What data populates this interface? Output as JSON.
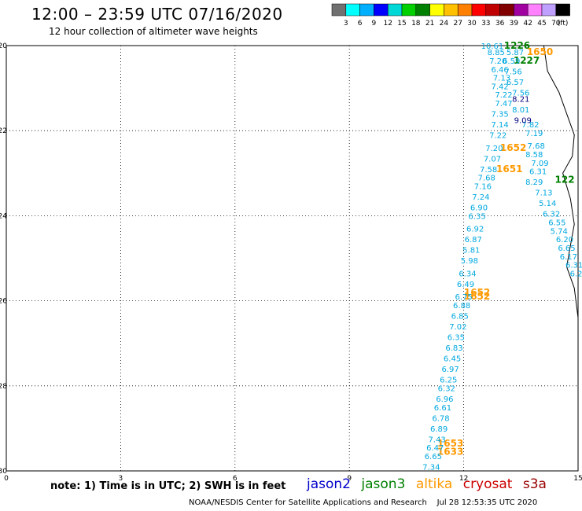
{
  "header": {
    "title": "12:00 – 23:59 UTC 07/16/2020",
    "subtitle": "12 hour collection of altimeter wave heights"
  },
  "colorbar": {
    "colors": [
      "#707070",
      "#00ffff",
      "#00b0ff",
      "#0000ff",
      "#00d8d8",
      "#00d000",
      "#008000",
      "#ffff00",
      "#ffc000",
      "#ff8000",
      "#ff0000",
      "#c00000",
      "#800000",
      "#a000a0",
      "#ff80ff",
      "#c0a0ff",
      "#000000"
    ],
    "labels": [
      "3",
      "6",
      "9",
      "12",
      "15",
      "18",
      "21",
      "24",
      "27",
      "30",
      "33",
      "36",
      "39",
      "42",
      "45",
      "70"
    ],
    "unit": "(ft)"
  },
  "footer": {
    "note": "note:  1) Time is in UTC;  2) SWH is in feet",
    "satellites": [
      {
        "name": "jason2",
        "color": "#0000cc"
      },
      {
        "name": "jason3",
        "color": "#008000"
      },
      {
        "name": "altika",
        "color": "#ff9900"
      },
      {
        "name": "cryosat",
        "color": "#cc0000"
      },
      {
        "name": "s3a",
        "color": "#990000"
      }
    ],
    "credit": "NOAA/NESDIS Center for Satellite Applications and Research    Jul 28 12:53:35 UTC 2020"
  },
  "chart_data": {
    "type": "scatter",
    "title": "12:00 – 23:59 UTC 07/16/2020",
    "xlim": [
      0,
      15
    ],
    "ylim": [
      -30,
      -20
    ],
    "x_ticks": [
      "0",
      "3",
      "6",
      "9",
      "12",
      "15"
    ],
    "y_ticks": [
      "-20",
      "-22",
      "-24",
      "-26",
      "-28",
      "-30"
    ],
    "grid": true,
    "coastline": [
      [
        14.1,
        -20.0
      ],
      [
        14.2,
        -20.6
      ],
      [
        14.5,
        -21.1
      ],
      [
        14.7,
        -21.6
      ],
      [
        14.9,
        -22.1
      ],
      [
        14.85,
        -22.6
      ],
      [
        14.6,
        -23.0
      ],
      [
        14.8,
        -23.6
      ],
      [
        14.9,
        -24.2
      ],
      [
        14.8,
        -24.7
      ],
      [
        14.7,
        -25.2
      ],
      [
        14.9,
        -25.7
      ],
      [
        15.0,
        -26.4
      ]
    ],
    "series": [
      {
        "name": "jason3",
        "color": "#008000",
        "points": [
          {
            "x": 13.4,
            "y": -20.0,
            "label": "1226"
          },
          {
            "x": 13.65,
            "y": -20.35,
            "label": "1227"
          },
          {
            "x": 14.65,
            "y": -23.15,
            "label": "122"
          }
        ]
      },
      {
        "name": "altika",
        "color": "#ff9900",
        "points": [
          {
            "x": 14.0,
            "y": -20.15,
            "label": "1650"
          },
          {
            "x": 13.3,
            "y": -22.4,
            "label": "1652"
          },
          {
            "x": 13.2,
            "y": -22.9,
            "label": "1651"
          },
          {
            "x": 12.35,
            "y": -25.8,
            "label": "1652"
          },
          {
            "x": 12.35,
            "y": -25.9,
            "label": "1652"
          },
          {
            "x": 11.65,
            "y": -29.35,
            "label": "1653"
          },
          {
            "x": 11.65,
            "y": -29.55,
            "label": "1633"
          }
        ]
      },
      {
        "name": "swh_track_a",
        "color": "#00a8e0",
        "points": [
          {
            "x": 12.75,
            "y": -20.0,
            "label": "10.61"
          },
          {
            "x": 12.85,
            "y": -20.15,
            "label": "8.85"
          },
          {
            "x": 12.9,
            "y": -20.35,
            "label": "7.20"
          },
          {
            "x": 12.95,
            "y": -20.55,
            "label": "6.46"
          },
          {
            "x": 13.0,
            "y": -20.75,
            "label": "7.13"
          },
          {
            "x": 12.95,
            "y": -20.95,
            "label": "7.42"
          },
          {
            "x": 13.05,
            "y": -21.15,
            "label": "7.22"
          },
          {
            "x": 13.05,
            "y": -21.35,
            "label": "7.47"
          },
          {
            "x": 12.95,
            "y": -21.6,
            "label": "7.35"
          },
          {
            "x": 12.95,
            "y": -21.85,
            "label": "7.14"
          },
          {
            "x": 12.9,
            "y": -22.1,
            "label": "7.22"
          },
          {
            "x": 12.8,
            "y": -22.4,
            "label": "7.20"
          },
          {
            "x": 12.75,
            "y": -22.65,
            "label": "7.07"
          },
          {
            "x": 12.65,
            "y": -22.9,
            "label": "7.58"
          },
          {
            "x": 12.6,
            "y": -23.1,
            "label": "7.68"
          },
          {
            "x": 12.5,
            "y": -23.3,
            "label": "7.16"
          },
          {
            "x": 12.45,
            "y": -23.55,
            "label": "7.24"
          },
          {
            "x": 12.4,
            "y": -23.8,
            "label": "6.90"
          },
          {
            "x": 12.35,
            "y": -24.0,
            "label": "6.35"
          },
          {
            "x": 12.3,
            "y": -24.3,
            "label": "6.92"
          },
          {
            "x": 12.25,
            "y": -24.55,
            "label": "6.87"
          },
          {
            "x": 12.2,
            "y": -24.8,
            "label": "5.81"
          },
          {
            "x": 12.15,
            "y": -25.05,
            "label": "5.98"
          },
          {
            "x": 12.1,
            "y": -25.35,
            "label": "6.34"
          },
          {
            "x": 12.05,
            "y": -25.6,
            "label": "6.49"
          },
          {
            "x": 12.0,
            "y": -25.9,
            "label": "6.75"
          },
          {
            "x": 11.95,
            "y": -26.1,
            "label": "6.88"
          },
          {
            "x": 11.9,
            "y": -26.35,
            "label": "6.85"
          },
          {
            "x": 11.85,
            "y": -26.6,
            "label": "7.02"
          },
          {
            "x": 11.8,
            "y": -26.85,
            "label": "6.35"
          },
          {
            "x": 11.75,
            "y": -27.1,
            "label": "6.83"
          },
          {
            "x": 11.7,
            "y": -27.35,
            "label": "6.45"
          },
          {
            "x": 11.65,
            "y": -27.6,
            "label": "6.97"
          },
          {
            "x": 11.6,
            "y": -27.85,
            "label": "6.25"
          },
          {
            "x": 11.55,
            "y": -28.05,
            "label": "6.32"
          },
          {
            "x": 11.5,
            "y": -28.3,
            "label": "6.96"
          },
          {
            "x": 11.45,
            "y": -28.5,
            "label": "6.61"
          },
          {
            "x": 11.4,
            "y": -28.75,
            "label": "6.78"
          },
          {
            "x": 11.35,
            "y": -29.0,
            "label": "6.89"
          },
          {
            "x": 11.3,
            "y": -29.25,
            "label": "7.43"
          },
          {
            "x": 11.25,
            "y": -29.45,
            "label": "6.47"
          },
          {
            "x": 11.2,
            "y": -29.65,
            "label": "6.65"
          },
          {
            "x": 11.15,
            "y": -29.9,
            "label": "7.34"
          }
        ]
      },
      {
        "name": "swh_track_b",
        "color": "#00a8e0",
        "points": [
          {
            "x": 13.35,
            "y": -20.15,
            "label": "5.87"
          },
          {
            "x": 13.25,
            "y": -20.35,
            "label": "6.59"
          },
          {
            "x": 13.3,
            "y": -20.6,
            "label": "7.56"
          },
          {
            "x": 13.35,
            "y": -20.85,
            "label": "6.57"
          },
          {
            "x": 13.5,
            "y": -21.1,
            "label": "7.56"
          },
          {
            "x": 13.5,
            "y": -21.5,
            "label": "8.01"
          },
          {
            "x": 13.75,
            "y": -21.85,
            "label": "7.82"
          },
          {
            "x": 13.85,
            "y": -22.05,
            "label": "7.19"
          },
          {
            "x": 13.9,
            "y": -22.35,
            "label": "7.68"
          },
          {
            "x": 13.85,
            "y": -22.55,
            "label": "8.58"
          },
          {
            "x": 14.0,
            "y": -22.75,
            "label": "7.09"
          },
          {
            "x": 13.95,
            "y": -22.95,
            "label": "6.31"
          },
          {
            "x": 13.85,
            "y": -23.2,
            "label": "8.29"
          },
          {
            "x": 14.1,
            "y": -23.45,
            "label": "7.13"
          },
          {
            "x": 14.2,
            "y": -23.7,
            "label": "5.14"
          },
          {
            "x": 14.3,
            "y": -23.95,
            "label": "6.32"
          },
          {
            "x": 14.45,
            "y": -24.15,
            "label": "6.55"
          },
          {
            "x": 14.5,
            "y": -24.35,
            "label": "5.74"
          },
          {
            "x": 14.65,
            "y": -24.55,
            "label": "6.20"
          },
          {
            "x": 14.7,
            "y": -24.75,
            "label": "6.65"
          },
          {
            "x": 14.75,
            "y": -24.95,
            "label": "6.17"
          },
          {
            "x": 14.9,
            "y": -25.15,
            "label": "6.31"
          },
          {
            "x": 14.95,
            "y": -25.35,
            "label": "6.2"
          }
        ]
      },
      {
        "name": "swh_dark",
        "color": "#000080",
        "points": [
          {
            "x": 13.5,
            "y": -21.25,
            "label": "8.21"
          },
          {
            "x": 13.55,
            "y": -21.75,
            "label": "9.09"
          }
        ]
      }
    ]
  }
}
